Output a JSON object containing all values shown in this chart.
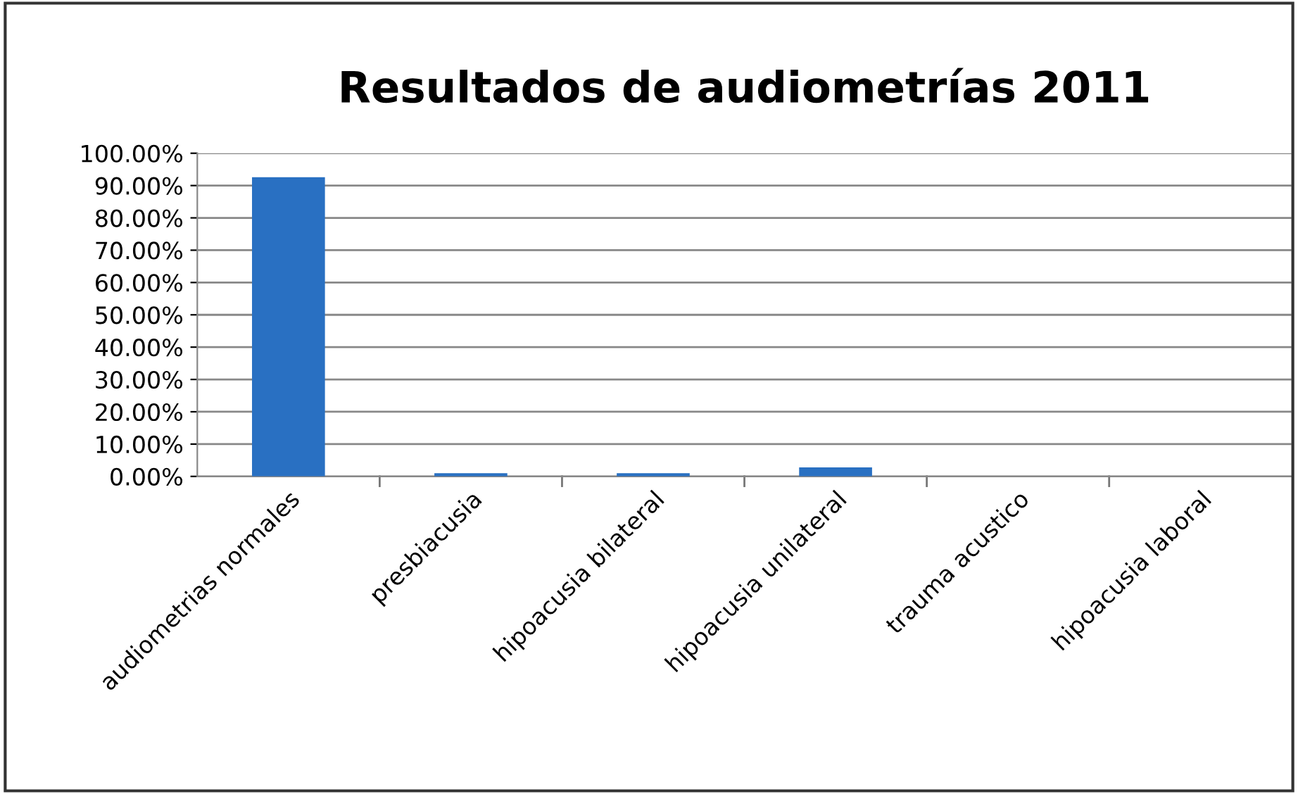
{
  "chart_data": {
    "type": "bar",
    "title": "Resultados de audiometrías 2011",
    "categories": [
      "audiometrias normales",
      "presbiacusia",
      "hipoacusia bilateral",
      "hipoacusia unilateral",
      "trauma acustico",
      "hipoacusia laboral"
    ],
    "values": [
      92.6,
      1.0,
      1.0,
      2.8,
      0,
      0
    ],
    "color": "#2970c2",
    "ylim": [
      0,
      100
    ],
    "yticks": [
      {
        "value": 0,
        "label": "0.00%"
      },
      {
        "value": 10,
        "label": "10.00%"
      },
      {
        "value": 20,
        "label": "20.00%"
      },
      {
        "value": 30,
        "label": "30.00%"
      },
      {
        "value": 40,
        "label": "40.00%"
      },
      {
        "value": 50,
        "label": "50.00%"
      },
      {
        "value": 60,
        "label": "60.00%"
      },
      {
        "value": 70,
        "label": "70.00%"
      },
      {
        "value": 80,
        "label": "80.00%"
      },
      {
        "value": 90,
        "label": "90.00%"
      },
      {
        "value": 100,
        "label": "100.00%"
      }
    ],
    "grid": "y"
  }
}
